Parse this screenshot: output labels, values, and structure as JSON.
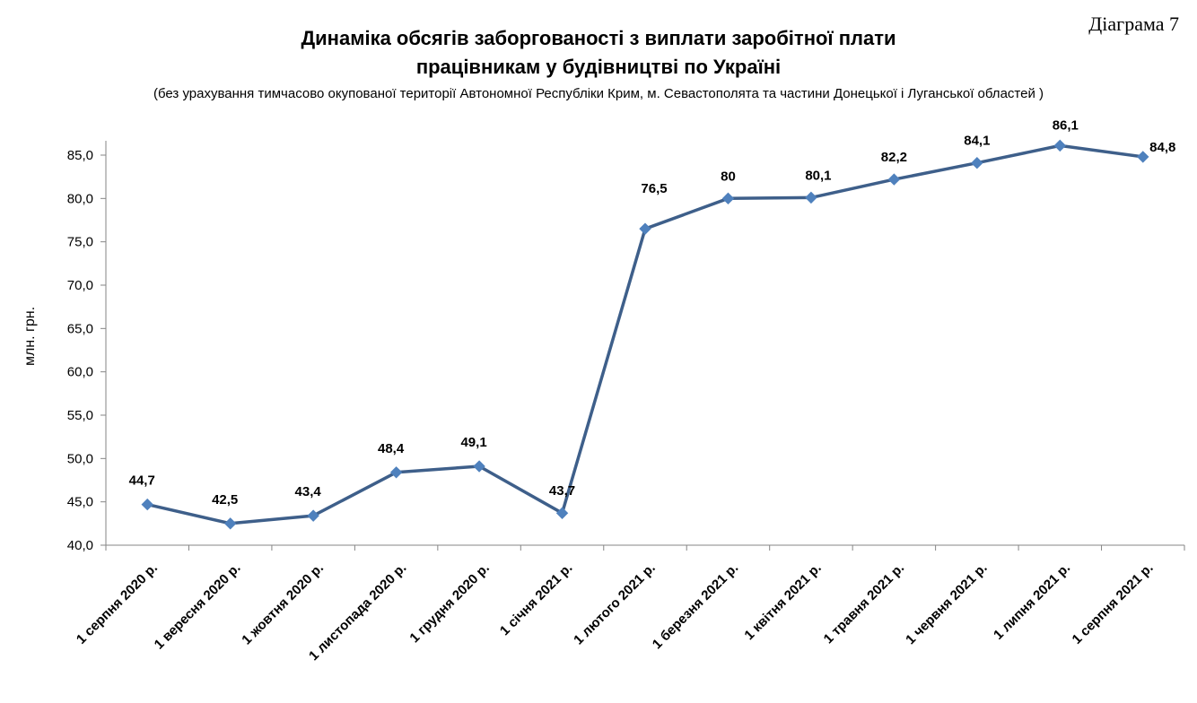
{
  "header": {
    "diagram_label": "Діаграма 7",
    "title_line1": "Динаміка обсягів заборгованості з виплати заробітної плати",
    "title_line2": "працівникам у будівництві по Україні",
    "subtitle": "(без урахування тимчасово окупованої території Автономної Республіки Крим, м. Севастополята та частини Донецької і Луганської областей )"
  },
  "chart_data": {
    "type": "line",
    "title": "Динаміка обсягів заборгованості з виплати заробітної плати працівникам у будівництві по Україні",
    "xlabel": "",
    "ylabel": "млн. грн.",
    "ylim": [
      40,
      85
    ],
    "y_ticks": [
      "40,0",
      "45,0",
      "50,0",
      "55,0",
      "60,0",
      "65,0",
      "70,0",
      "75,0",
      "80,0",
      "85,0"
    ],
    "grid": false,
    "legend": "none",
    "line_color": "#3e5f8a",
    "marker_color": "#4f81bd",
    "categories": [
      "1 серпня 2020 р.",
      "1 вересня 2020 р.",
      "1 жовтня 2020 р.",
      "1 листопада 2020 р.",
      "1 грудня 2020 р.",
      "1 січня 2021 р.",
      "1 лютого 2021 р.",
      "1 березня 2021 р.",
      "1 квітня 2021 р.",
      "1 травня 2021 р.",
      "1 червня 2021 р.",
      "1 липня 2021 р.",
      "1 серпня 2021 р."
    ],
    "values": [
      44.7,
      42.5,
      43.4,
      48.4,
      49.1,
      43.7,
      76.5,
      80,
      80.1,
      82.2,
      84.1,
      86.1,
      84.8
    ],
    "data_labels": [
      "44,7",
      "42,5",
      "43,4",
      "48,4",
      "49,1",
      "43,7",
      "76,5",
      "80",
      "80,1",
      "82,2",
      "84,1",
      "86,1",
      "84,8"
    ]
  }
}
